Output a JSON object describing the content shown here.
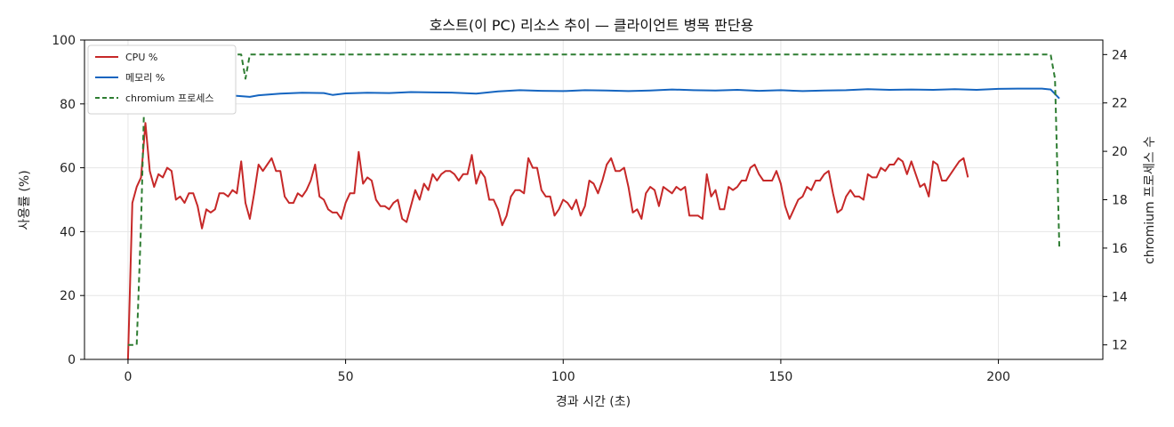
{
  "chart_data": {
    "type": "line",
    "title": "호스트(이 PC) 리소스 추이 — 클라이언트 병목 판단용",
    "xlabel": "경과 시간 (초)",
    "ylabel": "사용률 (%)",
    "y2label": "chromium 프로세스 수",
    "xlim": [
      -10,
      224
    ],
    "ylim": [
      0,
      100
    ],
    "y2lim": [
      11.4,
      24.6
    ],
    "xticks": [
      0,
      50,
      100,
      150,
      200
    ],
    "yticks": [
      0,
      20,
      40,
      60,
      80,
      100
    ],
    "y2ticks": [
      12,
      14,
      16,
      18,
      20,
      22,
      24
    ],
    "grid": true,
    "legend_position": "top-left",
    "series": [
      {
        "name": "CPU %",
        "axis": "left",
        "color": "#c62828",
        "style": "solid",
        "points": [
          [
            0,
            0
          ],
          [
            1,
            49
          ],
          [
            2,
            54
          ],
          [
            3,
            57
          ],
          [
            4,
            74
          ],
          [
            5,
            59
          ],
          [
            6,
            54
          ],
          [
            7,
            58
          ],
          [
            8,
            57
          ],
          [
            9,
            60
          ],
          [
            10,
            59
          ],
          [
            11,
            50
          ],
          [
            12,
            51
          ],
          [
            13,
            49
          ],
          [
            14,
            52
          ],
          [
            15,
            52
          ],
          [
            16,
            48
          ],
          [
            17,
            41
          ],
          [
            18,
            47
          ],
          [
            19,
            46
          ],
          [
            20,
            47
          ],
          [
            21,
            52
          ],
          [
            22,
            52
          ],
          [
            23,
            51
          ],
          [
            24,
            53
          ],
          [
            25,
            52
          ],
          [
            26,
            62
          ],
          [
            27,
            49
          ],
          [
            28,
            44
          ],
          [
            29,
            52
          ],
          [
            30,
            61
          ],
          [
            31,
            59
          ],
          [
            32,
            61
          ],
          [
            33,
            63
          ],
          [
            34,
            59
          ],
          [
            35,
            59
          ],
          [
            36,
            51
          ],
          [
            37,
            49
          ],
          [
            38,
            49
          ],
          [
            39,
            52
          ],
          [
            40,
            51
          ],
          [
            41,
            53
          ],
          [
            42,
            56
          ],
          [
            43,
            61
          ],
          [
            44,
            51
          ],
          [
            45,
            50
          ],
          [
            46,
            47
          ],
          [
            47,
            46
          ],
          [
            48,
            46
          ],
          [
            49,
            44
          ],
          [
            50,
            49
          ],
          [
            51,
            52
          ],
          [
            52,
            52
          ],
          [
            53,
            65
          ],
          [
            54,
            55
          ],
          [
            55,
            57
          ],
          [
            56,
            56
          ],
          [
            57,
            50
          ],
          [
            58,
            48
          ],
          [
            59,
            48
          ],
          [
            60,
            47
          ],
          [
            61,
            49
          ],
          [
            62,
            50
          ],
          [
            63,
            44
          ],
          [
            64,
            43
          ],
          [
            65,
            48
          ],
          [
            66,
            53
          ],
          [
            67,
            50
          ],
          [
            68,
            55
          ],
          [
            69,
            53
          ],
          [
            70,
            58
          ],
          [
            71,
            56
          ],
          [
            72,
            58
          ],
          [
            73,
            59
          ],
          [
            74,
            59
          ],
          [
            75,
            58
          ],
          [
            76,
            56
          ],
          [
            77,
            58
          ],
          [
            78,
            58
          ],
          [
            79,
            64
          ],
          [
            80,
            55
          ],
          [
            81,
            59
          ],
          [
            82,
            57
          ],
          [
            83,
            50
          ],
          [
            84,
            50
          ],
          [
            85,
            47
          ],
          [
            86,
            42
          ],
          [
            87,
            45
          ],
          [
            88,
            51
          ],
          [
            89,
            53
          ],
          [
            90,
            53
          ],
          [
            91,
            52
          ],
          [
            92,
            63
          ],
          [
            93,
            60
          ],
          [
            94,
            60
          ],
          [
            95,
            53
          ],
          [
            96,
            51
          ],
          [
            97,
            51
          ],
          [
            98,
            45
          ],
          [
            99,
            47
          ],
          [
            100,
            50
          ],
          [
            101,
            49
          ],
          [
            102,
            47
          ],
          [
            103,
            50
          ],
          [
            104,
            45
          ],
          [
            105,
            48
          ],
          [
            106,
            56
          ],
          [
            107,
            55
          ],
          [
            108,
            52
          ],
          [
            109,
            56
          ],
          [
            110,
            61
          ],
          [
            111,
            63
          ],
          [
            112,
            59
          ],
          [
            113,
            59
          ],
          [
            114,
            60
          ],
          [
            115,
            54
          ],
          [
            116,
            46
          ],
          [
            117,
            47
          ],
          [
            118,
            44
          ],
          [
            119,
            52
          ],
          [
            120,
            54
          ],
          [
            121,
            53
          ],
          [
            122,
            48
          ],
          [
            123,
            54
          ],
          [
            124,
            53
          ],
          [
            125,
            52
          ],
          [
            126,
            54
          ],
          [
            127,
            53
          ],
          [
            128,
            54
          ],
          [
            129,
            45
          ],
          [
            130,
            45
          ],
          [
            131,
            45
          ],
          [
            132,
            44
          ],
          [
            133,
            58
          ],
          [
            134,
            51
          ],
          [
            135,
            53
          ],
          [
            136,
            47
          ],
          [
            137,
            47
          ],
          [
            138,
            54
          ],
          [
            139,
            53
          ],
          [
            140,
            54
          ],
          [
            141,
            56
          ],
          [
            142,
            56
          ],
          [
            143,
            60
          ],
          [
            144,
            61
          ],
          [
            145,
            58
          ],
          [
            146,
            56
          ],
          [
            147,
            56
          ],
          [
            148,
            56
          ],
          [
            149,
            59
          ],
          [
            150,
            55
          ],
          [
            151,
            48
          ],
          [
            152,
            44
          ],
          [
            153,
            47
          ],
          [
            154,
            50
          ],
          [
            155,
            51
          ],
          [
            156,
            54
          ],
          [
            157,
            53
          ],
          [
            158,
            56
          ],
          [
            159,
            56
          ],
          [
            160,
            58
          ],
          [
            161,
            59
          ],
          [
            162,
            52
          ],
          [
            163,
            46
          ],
          [
            164,
            47
          ],
          [
            165,
            51
          ],
          [
            166,
            53
          ],
          [
            167,
            51
          ],
          [
            168,
            51
          ],
          [
            169,
            50
          ],
          [
            170,
            58
          ],
          [
            171,
            57
          ],
          [
            172,
            57
          ],
          [
            173,
            60
          ],
          [
            174,
            59
          ],
          [
            175,
            61
          ],
          [
            176,
            61
          ],
          [
            177,
            63
          ],
          [
            178,
            62
          ],
          [
            179,
            58
          ],
          [
            180,
            62
          ],
          [
            181,
            58
          ],
          [
            182,
            54
          ],
          [
            183,
            55
          ],
          [
            184,
            51
          ],
          [
            185,
            62
          ],
          [
            186,
            61
          ],
          [
            187,
            56
          ],
          [
            188,
            56
          ],
          [
            189,
            58
          ],
          [
            190,
            60
          ],
          [
            191,
            62
          ],
          [
            192,
            63
          ],
          [
            193,
            57
          ]
        ]
      },
      {
        "name": "메모리 %",
        "axis": "left",
        "color": "#1565c0",
        "style": "solid",
        "points": [
          [
            0,
            82
          ],
          [
            5,
            82
          ],
          [
            10,
            82.3
          ],
          [
            15,
            82.5
          ],
          [
            20,
            82.6
          ],
          [
            25,
            82.5
          ],
          [
            28,
            82.2
          ],
          [
            30,
            82.7
          ],
          [
            35,
            83.2
          ],
          [
            40,
            83.5
          ],
          [
            45,
            83.4
          ],
          [
            47,
            82.8
          ],
          [
            50,
            83.3
          ],
          [
            55,
            83.5
          ],
          [
            60,
            83.4
          ],
          [
            65,
            83.7
          ],
          [
            70,
            83.6
          ],
          [
            75,
            83.5
          ],
          [
            80,
            83.2
          ],
          [
            85,
            83.9
          ],
          [
            90,
            84.3
          ],
          [
            95,
            84.1
          ],
          [
            100,
            84.0
          ],
          [
            105,
            84.3
          ],
          [
            110,
            84.2
          ],
          [
            115,
            84.0
          ],
          [
            120,
            84.2
          ],
          [
            125,
            84.5
          ],
          [
            130,
            84.3
          ],
          [
            135,
            84.2
          ],
          [
            140,
            84.4
          ],
          [
            145,
            84.1
          ],
          [
            150,
            84.3
          ],
          [
            155,
            84.0
          ],
          [
            160,
            84.2
          ],
          [
            165,
            84.3
          ],
          [
            170,
            84.6
          ],
          [
            175,
            84.4
          ],
          [
            180,
            84.5
          ],
          [
            185,
            84.4
          ],
          [
            190,
            84.6
          ],
          [
            195,
            84.4
          ],
          [
            200,
            84.7
          ],
          [
            205,
            84.8
          ],
          [
            210,
            84.8
          ],
          [
            212,
            84.5
          ],
          [
            214,
            81.7
          ]
        ]
      },
      {
        "name": "chromium 프로세스",
        "axis": "right",
        "color": "#2e7d32",
        "style": "dashed",
        "points": [
          [
            0,
            12
          ],
          [
            2,
            12
          ],
          [
            3,
            17
          ],
          [
            4,
            24
          ],
          [
            5,
            24
          ],
          [
            26,
            24
          ],
          [
            27,
            23
          ],
          [
            28,
            24
          ],
          [
            212,
            24
          ],
          [
            213,
            23
          ],
          [
            214,
            16
          ]
        ]
      }
    ]
  }
}
